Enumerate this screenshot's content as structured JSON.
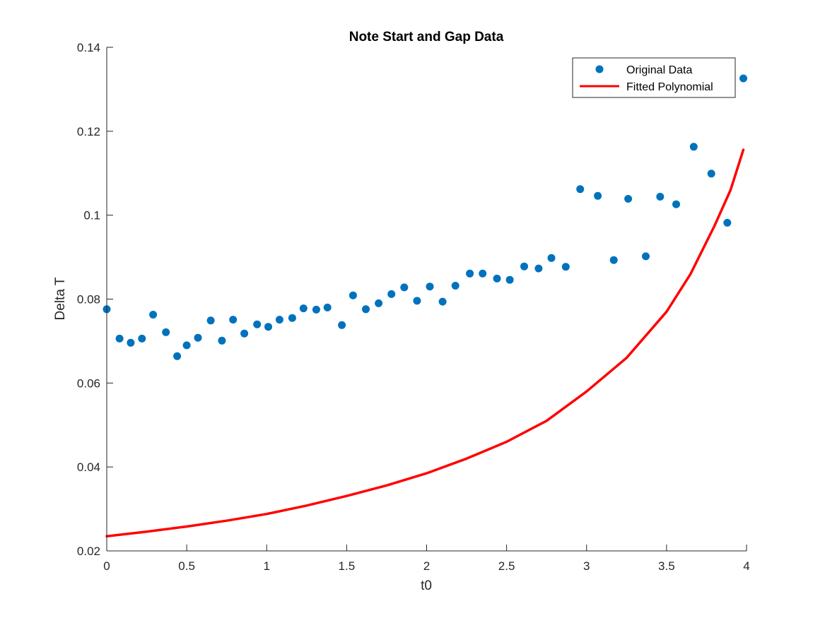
{
  "chart_data": {
    "type": "scatter",
    "title": "Note Start and Gap Data",
    "xlabel": "t0",
    "ylabel": "Delta T",
    "xlim": [
      0,
      4
    ],
    "ylim": [
      0.02,
      0.14
    ],
    "xticks": [
      0,
      0.5,
      1,
      1.5,
      2,
      2.5,
      3,
      3.5,
      4
    ],
    "xtick_labels": [
      "0",
      "0.5",
      "1",
      "1.5",
      "2",
      "2.5",
      "3",
      "3.5",
      "4"
    ],
    "yticks": [
      0.02,
      0.04,
      0.06,
      0.08,
      0.1,
      0.12,
      0.14
    ],
    "ytick_labels": [
      "0.02",
      "0.04",
      "0.06",
      "0.08",
      "0.1",
      "0.12",
      "0.14"
    ],
    "grid": false,
    "legend_position": "top-right",
    "series": [
      {
        "name": "Original Data",
        "style": "markers",
        "color": "#0072BD",
        "x": [
          0,
          0.08,
          0.15,
          0.22,
          0.29,
          0.37,
          0.44,
          0.5,
          0.57,
          0.65,
          0.72,
          0.79,
          0.86,
          0.94,
          1.01,
          1.08,
          1.16,
          1.23,
          1.31,
          1.38,
          1.47,
          1.54,
          1.62,
          1.7,
          1.78,
          1.86,
          1.94,
          2.02,
          2.1,
          2.18,
          2.27,
          2.35,
          2.44,
          2.52,
          2.61,
          2.7,
          2.78,
          2.87,
          2.96,
          3.07,
          3.17,
          3.26,
          3.37,
          3.46,
          3.56,
          3.67,
          3.78,
          3.88,
          3.98
        ],
        "y": [
          0.0776,
          0.0706,
          0.0696,
          0.0706,
          0.0763,
          0.0721,
          0.0664,
          0.069,
          0.0708,
          0.0749,
          0.0701,
          0.0751,
          0.0718,
          0.074,
          0.0734,
          0.0751,
          0.0755,
          0.0778,
          0.0775,
          0.078,
          0.0738,
          0.0809,
          0.0776,
          0.079,
          0.0812,
          0.0828,
          0.0796,
          0.083,
          0.0794,
          0.0832,
          0.0861,
          0.0861,
          0.0849,
          0.0846,
          0.0878,
          0.0873,
          0.0898,
          0.0877,
          0.1062,
          0.1046,
          0.0893,
          0.1039,
          0.0902,
          0.1044,
          0.1026,
          0.1163,
          0.1099,
          0.0982,
          0.1326
        ]
      },
      {
        "name": "Fitted Polynomial",
        "style": "line",
        "color": "#FF0000",
        "x": [
          0,
          0.25,
          0.5,
          0.75,
          1.0,
          1.25,
          1.5,
          1.75,
          2.0,
          2.25,
          2.5,
          2.75,
          3.0,
          3.25,
          3.5,
          3.65,
          3.8,
          3.9,
          3.98
        ],
        "y": [
          0.0235,
          0.0246,
          0.0258,
          0.0272,
          0.0288,
          0.0308,
          0.0331,
          0.0356,
          0.0385,
          0.042,
          0.046,
          0.051,
          0.058,
          0.066,
          0.077,
          0.086,
          0.0975,
          0.106,
          0.1156
        ]
      }
    ]
  }
}
